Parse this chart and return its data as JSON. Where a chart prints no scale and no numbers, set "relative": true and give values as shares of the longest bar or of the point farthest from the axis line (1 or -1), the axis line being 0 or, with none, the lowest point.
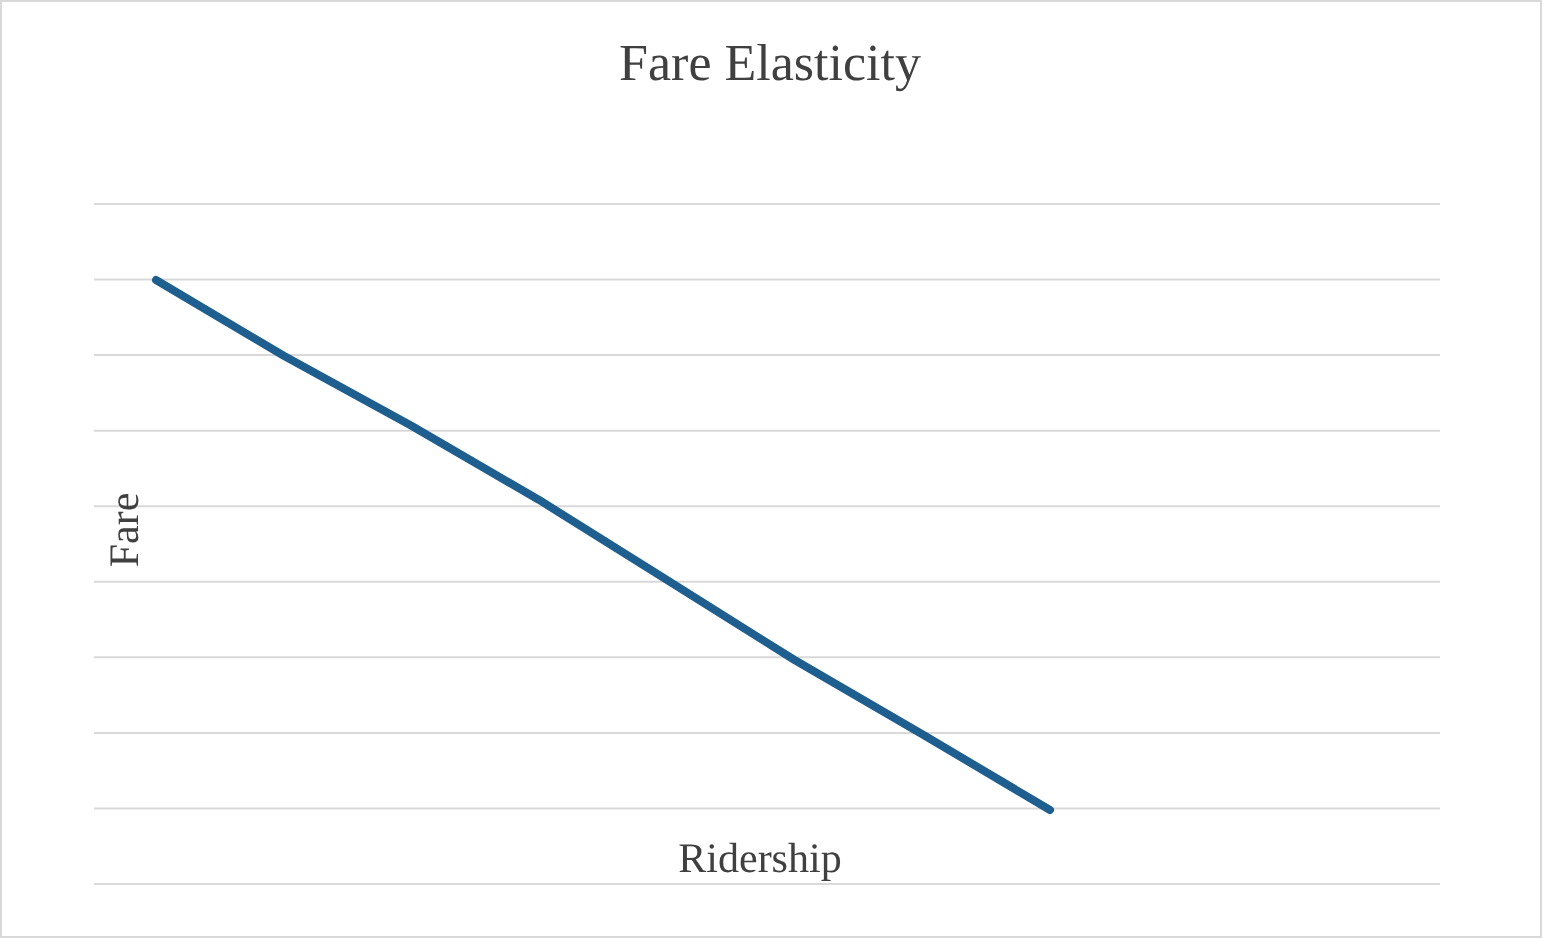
{
  "chart_data": {
    "type": "line",
    "title": "Fare Elasticity",
    "xlabel": "Ridership",
    "ylabel": "Fare",
    "relative": true,
    "grid": "y",
    "marker": "none",
    "line_style": "solid",
    "categories": [
      null,
      null,
      null,
      null,
      null,
      null,
      null,
      null
    ],
    "series": [
      {
        "color": "#1f5f8f",
        "values": [
          1,
          0.857,
          0.725,
          0.585,
          0.434,
          0.283,
          0.143,
          0
        ]
      }
    ]
  }
}
